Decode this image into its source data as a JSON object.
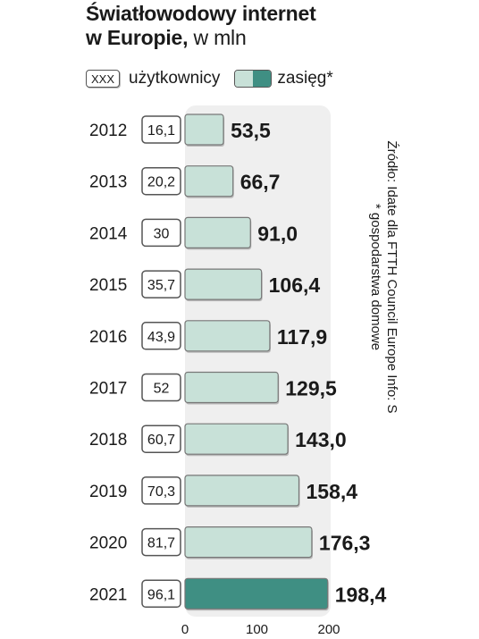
{
  "title": {
    "line1": "Światłowodowy internet",
    "line2": "w Europie,",
    "unit": "w mln"
  },
  "legend": {
    "users_box": "XXX",
    "users_label": "użytkownicy",
    "reach_label": "zasięg*",
    "reach_colors": [
      "#c8e1d8",
      "#3f8f83"
    ]
  },
  "notes": {
    "footnote": "* gospodarstwa domowe",
    "source": "Źródło: Idate dla FTTH Council Europe  Info: S"
  },
  "colors": {
    "bar": "#c8e1d8",
    "bar_highlight": "#3f8f83",
    "panel": "#efefef"
  },
  "chart_data": {
    "type": "bar",
    "orientation": "horizontal",
    "categories": [
      "2012",
      "2013",
      "2014",
      "2015",
      "2016",
      "2017",
      "2018",
      "2019",
      "2020",
      "2021"
    ],
    "series": [
      {
        "name": "zasięg*",
        "values": [
          53.5,
          66.7,
          91.0,
          106.4,
          117.9,
          129.5,
          143.0,
          158.4,
          176.3,
          198.4
        ]
      },
      {
        "name": "użytkownicy",
        "values": [
          16.1,
          20.2,
          30,
          35.7,
          43.9,
          52,
          60.7,
          70.3,
          81.7,
          96.1
        ]
      }
    ],
    "value_labels": [
      "53,5",
      "66,7",
      "91,0",
      "106,4",
      "117,9",
      "129,5",
      "143,0",
      "158,4",
      "176,3",
      "198,4"
    ],
    "user_labels": [
      "16,1",
      "20,2",
      "30",
      "35,7",
      "43,9",
      "52",
      "60,7",
      "70,3",
      "81,7",
      "96,1"
    ],
    "xlim": [
      0,
      200
    ],
    "xticks": [
      0,
      100,
      200
    ],
    "xtick_labels": [
      "0",
      "100",
      "200"
    ],
    "highlight_category": "2021",
    "grid": false
  }
}
